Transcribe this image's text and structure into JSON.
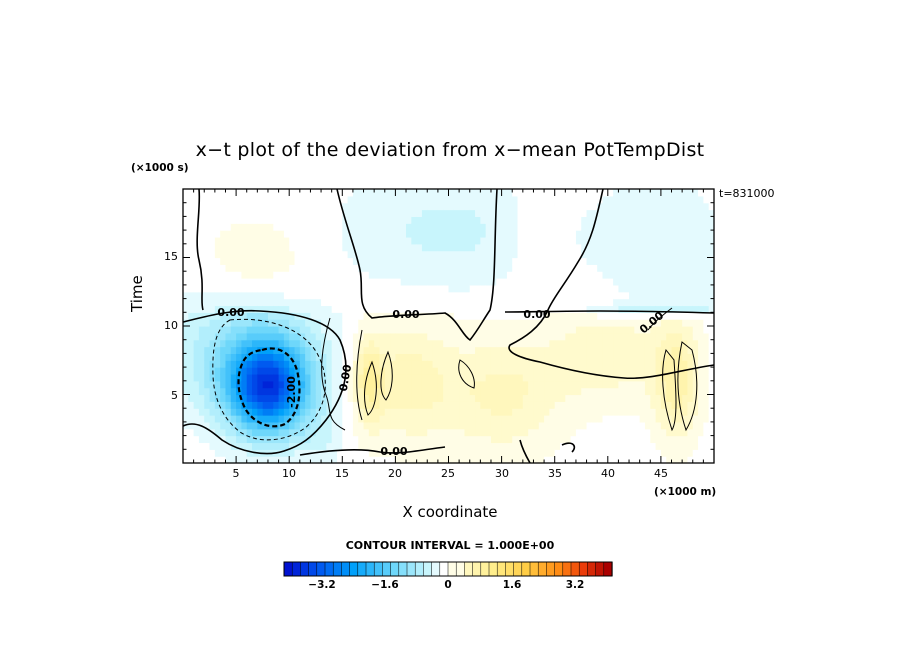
{
  "chart_data": {
    "type": "heatmap",
    "title": "x−t plot of the deviation from x−mean PotTempDist",
    "xlabel": "X coordinate",
    "ylabel": "Time",
    "x_unit": "(×1000 m)",
    "y_unit": "(×1000 s)",
    "time_stamp": "t=831000",
    "xlim": [
      0,
      50
    ],
    "ylim": [
      0,
      20
    ],
    "xticks": [
      "5",
      "10",
      "15",
      "20",
      "25",
      "30",
      "35",
      "40",
      "45"
    ],
    "yticks": [
      "5",
      "10",
      "15"
    ],
    "contour_interval_text": "CONTOUR INTERVAL = 1.000E+00",
    "contour_labels": [
      "0.00",
      "0.00",
      "0.00",
      "0.00",
      "0.00",
      "0.00",
      "-2.00"
    ],
    "colorbar": {
      "range": [
        -4.0,
        4.0
      ],
      "step": 0.2,
      "tick_labels": [
        "−3.2",
        "−1.6",
        "0",
        "1.6",
        "3.2"
      ],
      "tick_values": [
        -3.2,
        -1.6,
        0,
        1.6,
        3.2
      ]
    },
    "features": [
      {
        "name": "cold anomaly",
        "x": 8,
        "t": 5.5,
        "min_value": -3.0
      },
      {
        "name": "warm band",
        "x": 17.5,
        "t": 6,
        "max_value": 0.8
      },
      {
        "name": "warm band",
        "x": 46.5,
        "t": 6,
        "max_value": 0.8
      },
      {
        "name": "weak cool region",
        "x": 25,
        "t": 16,
        "value": -0.4
      }
    ]
  }
}
